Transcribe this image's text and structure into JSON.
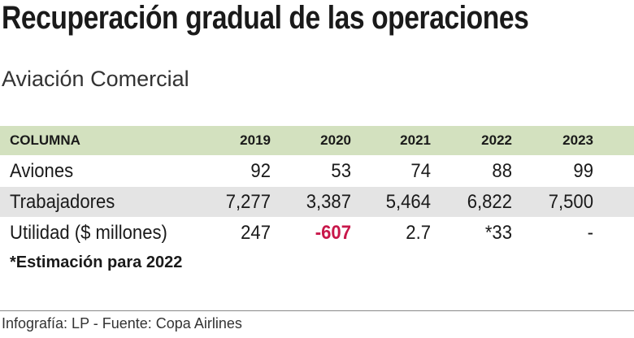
{
  "header": {
    "title": "Recuperación gradual de las operaciones",
    "subtitle": "Aviación Comercial"
  },
  "table": {
    "columns": [
      "COLUMNA",
      "2019",
      "2020",
      "2021",
      "2022",
      "2023"
    ],
    "rows": [
      [
        "Aviones",
        "92",
        "53",
        "74",
        "88",
        "99"
      ],
      [
        "Trabajadores",
        "7,277",
        "3,387",
        "5,464",
        "6,822",
        "7,500"
      ],
      [
        "Utilidad ($ millones)",
        "247",
        "-607",
        "2.7",
        "*33",
        "-"
      ]
    ]
  },
  "note": "*Estimación para 2022",
  "source": "Infografía: LP - Fuente: Copa Airlines"
}
